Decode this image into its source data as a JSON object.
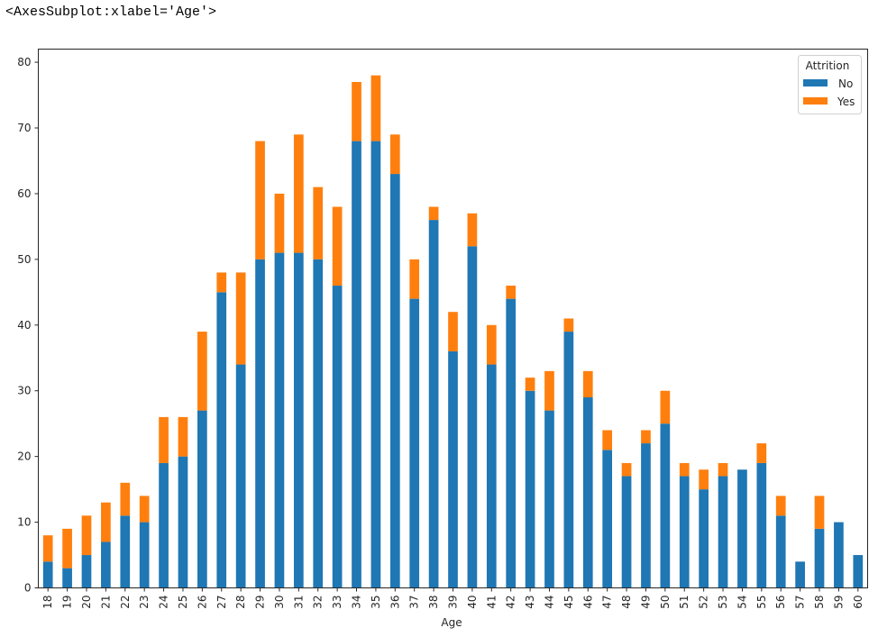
{
  "output": {
    "repr_text": "<AxesSubplot:xlabel='Age'>"
  },
  "colors": {
    "no": "#1f77b4",
    "yes": "#ff7f0e",
    "axis": "#262626"
  },
  "chart_data": {
    "type": "bar",
    "stacked": true,
    "title": "",
    "xlabel": "Age",
    "ylabel": "",
    "ylim": [
      0,
      82
    ],
    "yticks": [
      0,
      10,
      20,
      30,
      40,
      50,
      60,
      70,
      80
    ],
    "grid": false,
    "legend": {
      "title": "Attrition",
      "position": "upper right",
      "entries": [
        "No",
        "Yes"
      ]
    },
    "categories": [
      "18",
      "19",
      "20",
      "21",
      "22",
      "23",
      "24",
      "25",
      "26",
      "27",
      "28",
      "29",
      "30",
      "31",
      "32",
      "33",
      "34",
      "35",
      "36",
      "37",
      "38",
      "39",
      "40",
      "41",
      "42",
      "43",
      "44",
      "45",
      "46",
      "47",
      "48",
      "49",
      "50",
      "51",
      "52",
      "53",
      "54",
      "55",
      "56",
      "57",
      "58",
      "59",
      "60"
    ],
    "series": [
      {
        "name": "No",
        "values": [
          4,
          3,
          5,
          7,
          11,
          10,
          19,
          20,
          27,
          45,
          34,
          50,
          51,
          51,
          50,
          46,
          68,
          68,
          63,
          44,
          56,
          36,
          52,
          34,
          44,
          30,
          27,
          39,
          29,
          21,
          17,
          22,
          25,
          17,
          15,
          17,
          18,
          19,
          11,
          4,
          9,
          10,
          5
        ]
      },
      {
        "name": "Yes",
        "values": [
          4,
          6,
          6,
          6,
          5,
          4,
          7,
          6,
          12,
          3,
          14,
          18,
          9,
          18,
          11,
          12,
          9,
          10,
          6,
          6,
          2,
          6,
          5,
          6,
          2,
          2,
          6,
          2,
          4,
          3,
          2,
          2,
          5,
          2,
          3,
          2,
          0,
          3,
          3,
          0,
          5,
          0,
          0
        ]
      }
    ]
  }
}
